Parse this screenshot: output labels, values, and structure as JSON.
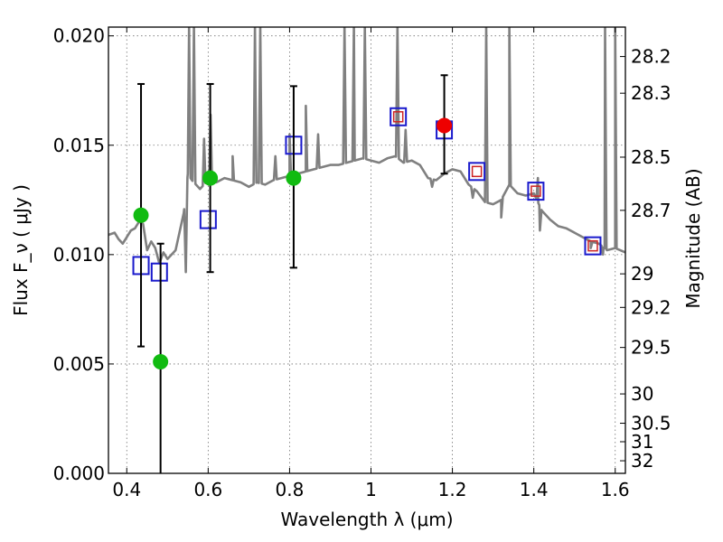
{
  "chart_data": {
    "type": "scatter",
    "title": "",
    "xlabel": "Wavelength  λ (μm)",
    "ylabel": "Flux  F_ν  ( μJy )",
    "ylabel_right": "Magnitude (AB)",
    "xlim": [
      0.355,
      1.625
    ],
    "ylim": [
      0.0,
      0.0204
    ],
    "grid": true,
    "x_ticks": [
      0.4,
      0.6,
      0.8,
      1.0,
      1.2,
      1.4,
      1.6
    ],
    "x_tick_labels": [
      "0.4",
      "0.6",
      "0.8",
      "1",
      "1.2",
      "1.4",
      "1.6"
    ],
    "y_ticks": [
      0.0,
      0.005,
      0.01,
      0.015,
      0.02
    ],
    "y_tick_labels": [
      "0.000",
      "0.005",
      "0.010",
      "0.015",
      "0.020"
    ],
    "mag_ticks": [
      28.2,
      28.3,
      28.5,
      28.7,
      29,
      29.2,
      29.5,
      30,
      30.5,
      31,
      32
    ],
    "mag_tick_labels": [
      "28.2",
      "28.3",
      "28.5",
      "28.7",
      "29",
      "29.2",
      "29.5",
      "30",
      "30.5",
      "31",
      "32"
    ],
    "colors": {
      "sed": "#808080",
      "green": "#11bb11",
      "red": "#ee0000",
      "model_box": "#1a1acc",
      "inner_box": "#cc2222",
      "errorbar": "#000000"
    },
    "series": [
      {
        "kind": "sed_line",
        "x": [
          0.355,
          0.37,
          0.38,
          0.39,
          0.4,
          0.41,
          0.42,
          0.43,
          0.44,
          0.45,
          0.46,
          0.47,
          0.48,
          0.49,
          0.5,
          0.52,
          0.54,
          0.55,
          0.56,
          0.58,
          0.6,
          0.62,
          0.64,
          0.66,
          0.68,
          0.7,
          0.72,
          0.74,
          0.76,
          0.78,
          0.8,
          0.82,
          0.84,
          0.86,
          0.88,
          0.9,
          0.92,
          0.94,
          0.96,
          0.98,
          1.0,
          1.02,
          1.04,
          1.06,
          1.08,
          1.1,
          1.12,
          1.14,
          1.16,
          1.18,
          1.2,
          1.22,
          1.24,
          1.26,
          1.28,
          1.3,
          1.32,
          1.34,
          1.36,
          1.38,
          1.4,
          1.42,
          1.44,
          1.46,
          1.48,
          1.5,
          1.52,
          1.54,
          1.56,
          1.58,
          1.6,
          1.625
        ],
        "y": [
          0.0109,
          0.011,
          0.0107,
          0.0105,
          0.0108,
          0.0111,
          0.0112,
          0.0115,
          0.0114,
          0.0102,
          0.0106,
          0.0103,
          0.0096,
          0.0101,
          0.0098,
          0.0102,
          0.0119,
          0.0137,
          0.0134,
          0.013,
          0.0134,
          0.0133,
          0.0135,
          0.0134,
          0.0133,
          0.0131,
          0.0133,
          0.0132,
          0.0134,
          0.0135,
          0.0136,
          0.0137,
          0.0138,
          0.0139,
          0.014,
          0.0141,
          0.0141,
          0.0142,
          0.0143,
          0.0144,
          0.0143,
          0.0142,
          0.0144,
          0.0145,
          0.0142,
          0.0143,
          0.0141,
          0.0135,
          0.0134,
          0.0137,
          0.0139,
          0.0138,
          0.0132,
          0.0129,
          0.0124,
          0.0123,
          0.0125,
          0.0132,
          0.0128,
          0.0127,
          0.0128,
          0.012,
          0.0116,
          0.0113,
          0.0112,
          0.011,
          0.0108,
          0.0106,
          0.0105,
          0.0102,
          0.0103,
          0.0101
        ],
        "emission_lines": [
          {
            "x": 0.553,
            "peak": 0.0204
          },
          {
            "x": 0.565,
            "peak": 0.0204
          },
          {
            "x": 0.59,
            "peak": 0.0153
          },
          {
            "x": 0.606,
            "peak": 0.0164
          },
          {
            "x": 0.66,
            "peak": 0.0145
          },
          {
            "x": 0.715,
            "peak": 0.0204
          },
          {
            "x": 0.728,
            "peak": 0.0204
          },
          {
            "x": 0.765,
            "peak": 0.0145
          },
          {
            "x": 0.8,
            "peak": 0.0155
          },
          {
            "x": 0.84,
            "peak": 0.0168
          },
          {
            "x": 0.87,
            "peak": 0.0155
          },
          {
            "x": 0.935,
            "peak": 0.0204
          },
          {
            "x": 0.958,
            "peak": 0.0204
          },
          {
            "x": 0.985,
            "peak": 0.0204
          },
          {
            "x": 1.065,
            "peak": 0.0204
          },
          {
            "x": 1.085,
            "peak": 0.0157
          },
          {
            "x": 1.283,
            "peak": 0.0204
          },
          {
            "x": 1.34,
            "peak": 0.0204
          },
          {
            "x": 1.41,
            "peak": 0.0135
          },
          {
            "x": 1.575,
            "peak": 0.0204
          },
          {
            "x": 1.6,
            "peak": 0.0204
          }
        ],
        "absorption_dips": [
          {
            "x": 0.545,
            "depth": 0.0092
          },
          {
            "x": 1.15,
            "depth": 0.0131
          },
          {
            "x": 1.25,
            "depth": 0.0126
          },
          {
            "x": 1.32,
            "depth": 0.0117
          },
          {
            "x": 1.415,
            "depth": 0.0111
          },
          {
            "x": 1.54,
            "depth": 0.0103
          },
          {
            "x": 1.57,
            "depth": 0.01
          }
        ]
      },
      {
        "kind": "observed_green",
        "points": [
          {
            "x": 0.435,
            "y": 0.0118,
            "yerr_lo": 0.006,
            "yerr_hi": 0.006
          },
          {
            "x": 0.483,
            "y": 0.0051,
            "yerr_lo": 0.0051,
            "yerr_hi": 0.0054
          },
          {
            "x": 0.605,
            "y": 0.0135,
            "yerr_lo": 0.0043,
            "yerr_hi": 0.0043
          },
          {
            "x": 0.81,
            "y": 0.0135,
            "yerr_lo": 0.0041,
            "yerr_hi": 0.0042
          }
        ]
      },
      {
        "kind": "observed_red",
        "points": [
          {
            "x": 1.18,
            "y": 0.0159,
            "yerr_lo": 0.0022,
            "yerr_hi": 0.0023
          }
        ]
      },
      {
        "kind": "model_boxes",
        "points": [
          {
            "x": 0.435,
            "y": 0.0095,
            "inner": false
          },
          {
            "x": 0.48,
            "y": 0.0092,
            "inner": false
          },
          {
            "x": 0.6,
            "y": 0.0116,
            "inner": false
          },
          {
            "x": 0.81,
            "y": 0.015,
            "inner": false
          },
          {
            "x": 1.067,
            "y": 0.0163,
            "inner": true
          },
          {
            "x": 1.18,
            "y": 0.0157,
            "inner": false
          },
          {
            "x": 1.26,
            "y": 0.0138,
            "inner": true
          },
          {
            "x": 1.405,
            "y": 0.0129,
            "inner": true
          },
          {
            "x": 1.545,
            "y": 0.0104,
            "inner": true
          }
        ]
      }
    ]
  }
}
